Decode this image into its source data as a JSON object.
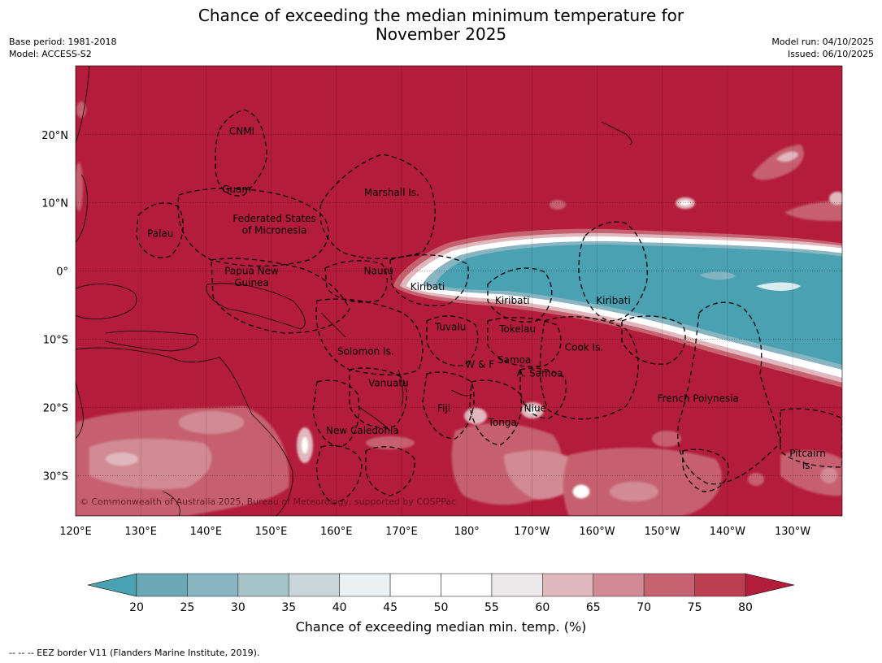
{
  "title_line1": "Chance of exceeding the median minimum temperature for",
  "title_line2": "November 2025",
  "meta_left": [
    "Base period: 1981-2018",
    "Model: ACCESS-S2"
  ],
  "meta_right": [
    "Model run: 04/10/2025",
    "Issued: 06/10/2025"
  ],
  "lat_ticks": [
    {
      "label": "20°N",
      "lat": 20
    },
    {
      "label": "10°N",
      "lat": 10
    },
    {
      "label": "0°",
      "lat": 0
    },
    {
      "label": "10°S",
      "lat": -10
    },
    {
      "label": "20°S",
      "lat": -20
    },
    {
      "label": "30°S",
      "lat": -30
    }
  ],
  "lon_ticks": [
    {
      "label": "120°E",
      "lon": 120
    },
    {
      "label": "130°E",
      "lon": 130
    },
    {
      "label": "140°E",
      "lon": 140
    },
    {
      "label": "150°E",
      "lon": 150
    },
    {
      "label": "160°E",
      "lon": 160
    },
    {
      "label": "170°E",
      "lon": 170
    },
    {
      "label": "180°",
      "lon": 180
    },
    {
      "label": "170°W",
      "lon": 190
    },
    {
      "label": "160°W",
      "lon": 200
    },
    {
      "label": "150°W",
      "lon": 210
    },
    {
      "label": "140°W",
      "lon": 220
    },
    {
      "label": "130°W",
      "lon": 230
    }
  ],
  "map_labels": [
    {
      "text": "CNMI",
      "lon": 145.5,
      "lat": 20.5
    },
    {
      "text": "Guam",
      "lon": 144.7,
      "lat": 12.0
    },
    {
      "text": "Marshall Is.",
      "lon": 168.5,
      "lat": 11.5
    },
    {
      "text": "Federated States",
      "lon": 150.5,
      "lat": 7.7
    },
    {
      "text": "of Micronesia",
      "lon": 150.5,
      "lat": 6.0
    },
    {
      "text": "Palau",
      "lon": 133,
      "lat": 5.5
    },
    {
      "text": "Papua New",
      "lon": 147,
      "lat": 0.0
    },
    {
      "text": "Guinea",
      "lon": 147,
      "lat": -1.7
    },
    {
      "text": "Nauru",
      "lon": 166.5,
      "lat": 0.0
    },
    {
      "text": "Kiribati",
      "lon": 174,
      "lat": -2.3
    },
    {
      "text": "Kiribati",
      "lon": 187,
      "lat": -4.3
    },
    {
      "text": "Kiribati",
      "lon": 202.5,
      "lat": -4.3
    },
    {
      "text": "Tuvalu",
      "lon": 177.5,
      "lat": -8.2
    },
    {
      "text": "Tokelau",
      "lon": 187.8,
      "lat": -8.5
    },
    {
      "text": "Cook Is.",
      "lon": 198,
      "lat": -11.2
    },
    {
      "text": "Solomon Is.",
      "lon": 164.5,
      "lat": -11.8
    },
    {
      "text": "Samoa",
      "lon": 187.3,
      "lat": -13.0
    },
    {
      "text": "W & F",
      "lon": 182,
      "lat": -13.7
    },
    {
      "text": "A. Samoa",
      "lon": 191.2,
      "lat": -15.0
    },
    {
      "text": "Vanuatu",
      "lon": 168,
      "lat": -16.4
    },
    {
      "text": "French Polynesia",
      "lon": 215.5,
      "lat": -18.7
    },
    {
      "text": "Fiji",
      "lon": 176.5,
      "lat": -20.1
    },
    {
      "text": "Niue",
      "lon": 190.5,
      "lat": -20.1
    },
    {
      "text": "Tonga",
      "lon": 185.5,
      "lat": -22.2
    },
    {
      "text": "New Caledonia",
      "lon": 164,
      "lat": -23.4
    },
    {
      "text": "Pitcairn",
      "lon": 232.3,
      "lat": -26.7
    },
    {
      "text": "Is.",
      "lon": 232.3,
      "lat": -28.5
    }
  ],
  "copyright": "© Commonwealth of Australia 2025, Bureau of Meteorology, supported by COSPPac",
  "colorbar": {
    "ticks": [
      "20",
      "25",
      "30",
      "35",
      "40",
      "45",
      "50",
      "55",
      "60",
      "65",
      "70",
      "75",
      "80"
    ],
    "low_color": "#49a1b2",
    "high_color": "#b31c3a",
    "colors": [
      "#6aa8b6",
      "#88b5c1",
      "#a7c3ca",
      "#cad7da",
      "#eaf1f3",
      "#ffffff",
      "#ffffff",
      "#ebe9ea",
      "#e0b7bd",
      "#d28a95",
      "#c6616f",
      "#bb3f51"
    ],
    "label": "Chance of exceeding median min. temp. (%)"
  },
  "footnote": "--  --  -- EEZ border V11 (Flanders Marine Institute, 2019)."
}
